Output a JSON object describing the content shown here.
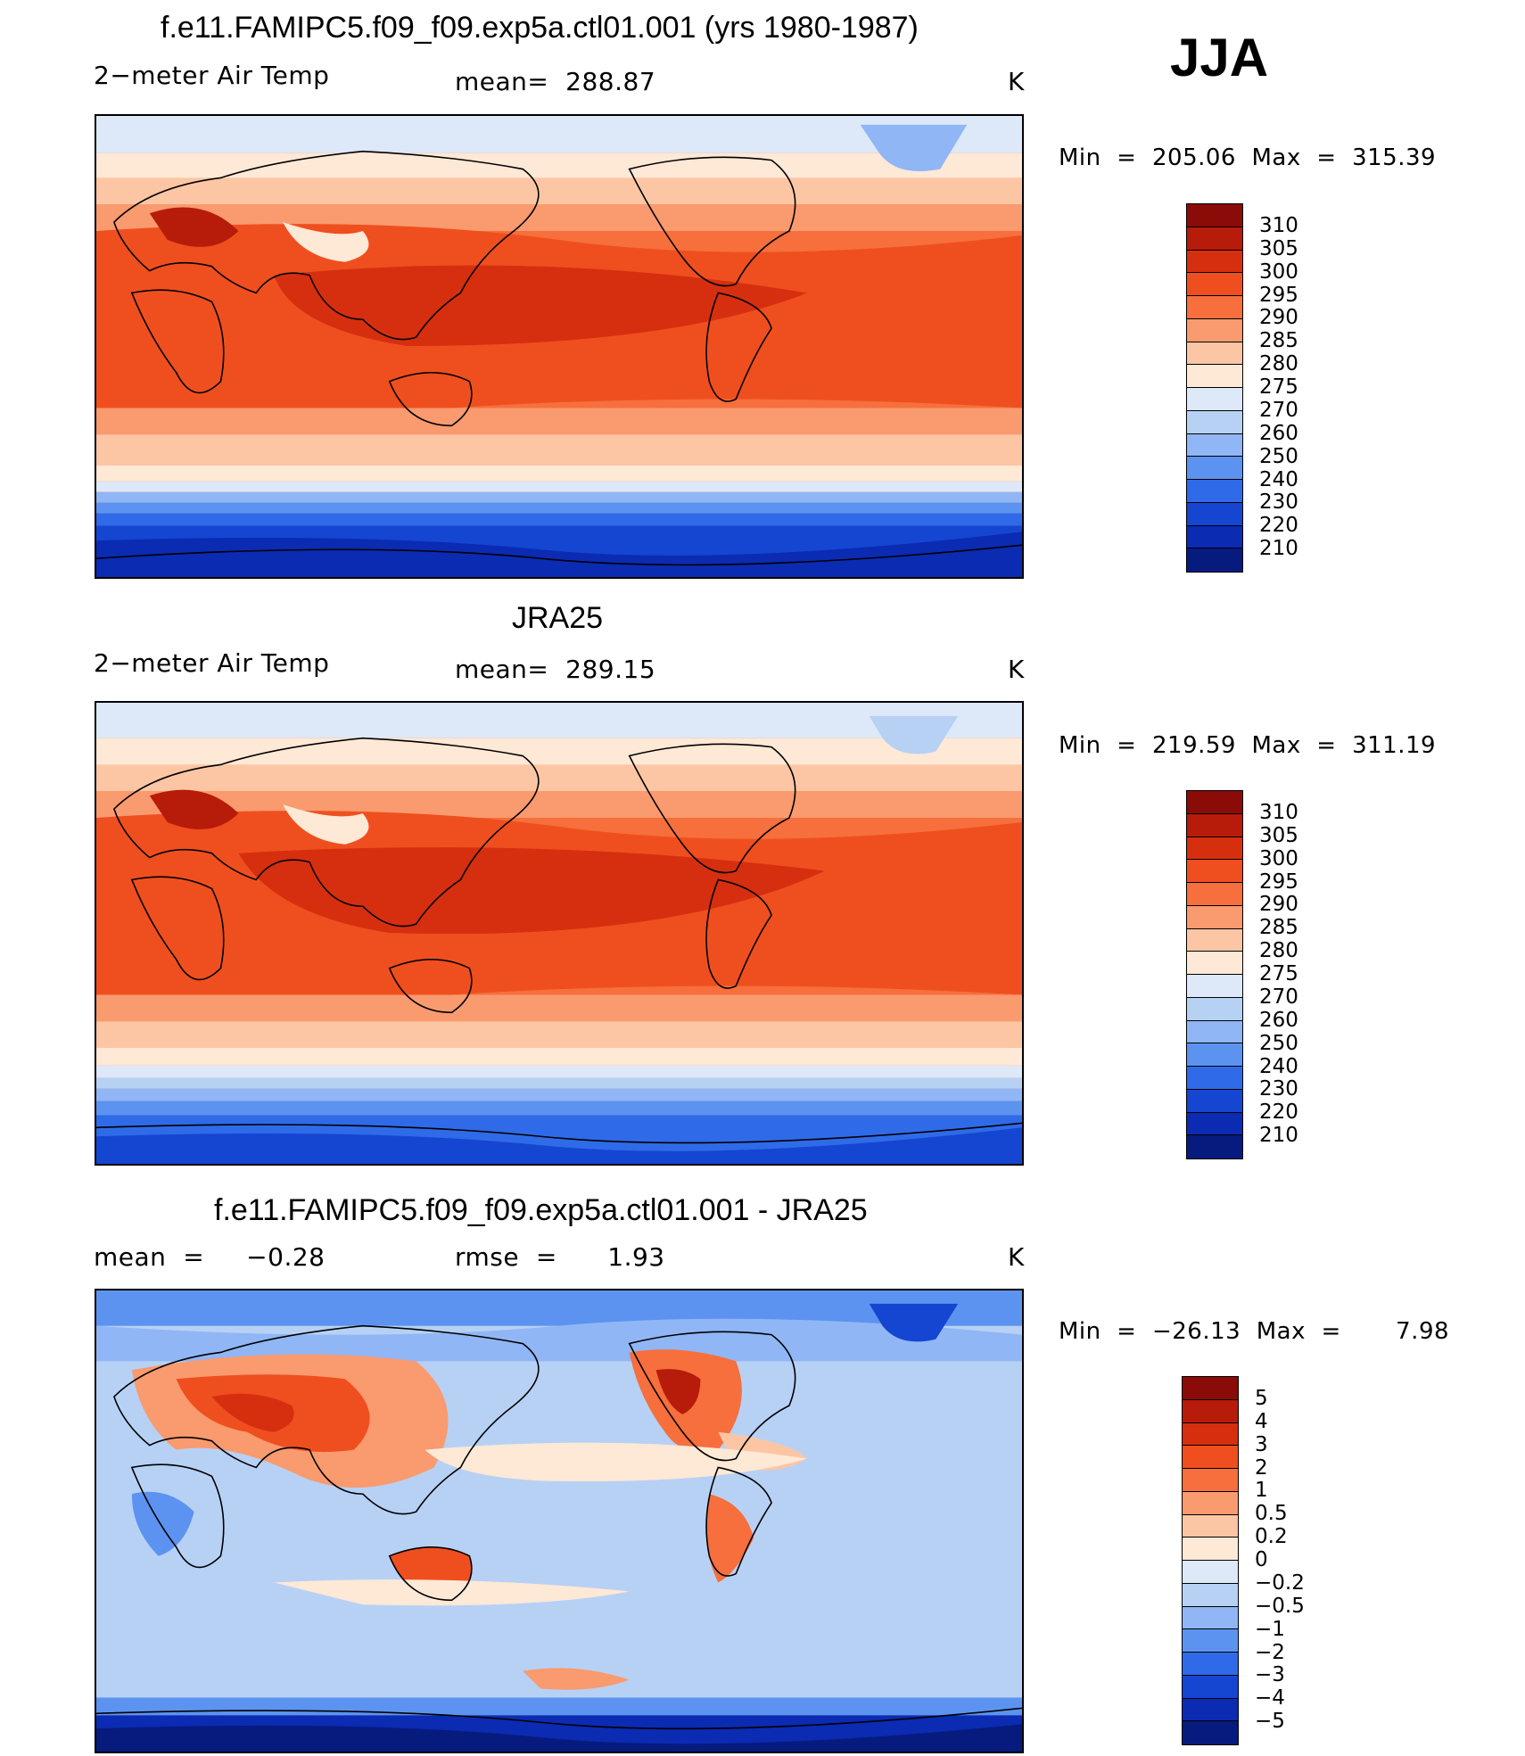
{
  "season": "JJA",
  "panels": [
    {
      "title": "f.e11.FAMIPC5.f09_f09.exp5a.ctl01.001 (yrs 1980-1987)",
      "left_label": "2−meter Air Temp",
      "center_label": "mean=  288.87",
      "units": "K",
      "minmax": "Min  =  205.06  Max  =  315.39",
      "colorbar": {
        "labels": [
          "310",
          "305",
          "300",
          "295",
          "290",
          "285",
          "280",
          "275",
          "270",
          "260",
          "250",
          "240",
          "230",
          "220",
          "210"
        ],
        "colors": [
          "#8a0b07",
          "#b71b0a",
          "#d62f10",
          "#ef4f1e",
          "#f66f3c",
          "#f99a6f",
          "#fcc6a4",
          "#fee8d6",
          "#dde9f8",
          "#b7d1f5",
          "#90b6f5",
          "#5c93f0",
          "#2f6be8",
          "#1446d2",
          "#0a2bb2",
          "#071a7e"
        ]
      },
      "map_fill": "warm"
    },
    {
      "title": "JRA25",
      "left_label": "2−meter Air Temp",
      "center_label": "mean=  289.15",
      "units": "K",
      "minmax": "Min  =  219.59  Max  =  311.19",
      "colorbar": {
        "labels": [
          "310",
          "305",
          "300",
          "295",
          "290",
          "285",
          "280",
          "275",
          "270",
          "260",
          "250",
          "240",
          "230",
          "220",
          "210"
        ],
        "colors": [
          "#8a0b07",
          "#b71b0a",
          "#d62f10",
          "#ef4f1e",
          "#f66f3c",
          "#f99a6f",
          "#fcc6a4",
          "#fee8d6",
          "#dde9f8",
          "#b7d1f5",
          "#90b6f5",
          "#5c93f0",
          "#2f6be8",
          "#1446d2",
          "#0a2bb2",
          "#071a7e"
        ]
      },
      "map_fill": "warm"
    },
    {
      "title": "f.e11.FAMIPC5.f09_f09.exp5a.ctl01.001 - JRA25",
      "left_label": "mean  =     −0.28",
      "center_label": "rmse  =      1.93",
      "units": "K",
      "minmax": "Min  =  −26.13  Max  =       7.98",
      "colorbar": {
        "labels": [
          "5",
          "4",
          "3",
          "2",
          "1",
          "0.5",
          "0.2",
          "0",
          "−0.2",
          "−0.5",
          "−1",
          "−2",
          "−3",
          "−4",
          "−5"
        ],
        "colors": [
          "#8a0b07",
          "#b71b0a",
          "#d62f10",
          "#ef4f1e",
          "#f66f3c",
          "#f99a6f",
          "#fcc6a4",
          "#fee8d6",
          "#dde9f8",
          "#b7d1f5",
          "#90b6f5",
          "#5c93f0",
          "#2f6be8",
          "#1446d2",
          "#0a2bb2",
          "#071a7e"
        ]
      },
      "map_fill": "diff"
    }
  ]
}
